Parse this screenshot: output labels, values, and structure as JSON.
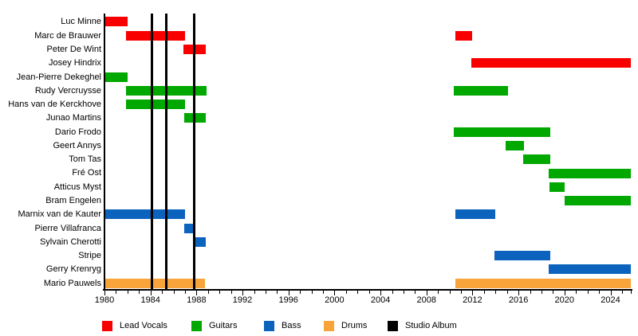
{
  "chart_data": {
    "type": "gantt",
    "description": "Band member timeline with studio album markers",
    "x_axis": {
      "min": 1980,
      "max": 2025.8,
      "label_step": 4,
      "minor_step": 1,
      "tick_labels": [
        "1980",
        "1984",
        "1988",
        "1992",
        "1996",
        "2000",
        "2004",
        "2008",
        "2012",
        "2016",
        "2020",
        "2024"
      ]
    },
    "colors": {
      "lead_vocals": "#f80000",
      "guitars": "#00a800",
      "bass": "#0b63be",
      "drums": "#f9a43b",
      "studio_album": "#000000"
    },
    "legend": [
      {
        "key": "lead_vocals",
        "label": "Lead Vocals"
      },
      {
        "key": "guitars",
        "label": "Guitars"
      },
      {
        "key": "bass",
        "label": "Bass"
      },
      {
        "key": "drums",
        "label": "Drums"
      },
      {
        "key": "studio_album",
        "label": "Studio Album"
      }
    ],
    "studio_albums": [
      1984.15,
      1985.35,
      1987.8
    ],
    "members": [
      {
        "name": "Luc Minne",
        "role": "lead_vocals",
        "spans": [
          [
            1980,
            1982
          ]
        ]
      },
      {
        "name": "Marc de Brauwer",
        "role": "lead_vocals",
        "spans": [
          [
            1981.85,
            1987
          ],
          [
            2010.5,
            2012
          ]
        ]
      },
      {
        "name": "Peter De Wint",
        "role": "lead_vocals",
        "spans": [
          [
            1986.85,
            1988.8
          ]
        ]
      },
      {
        "name": "Josey Hindrix",
        "role": "lead_vocals",
        "spans": [
          [
            2011.9,
            2025.8
          ]
        ]
      },
      {
        "name": "Jean-Pierre Dekeghel",
        "role": "guitars",
        "spans": [
          [
            1980,
            1982
          ]
        ]
      },
      {
        "name": "Rudy Vercruysse",
        "role": "guitars",
        "spans": [
          [
            1981.85,
            1988.9
          ],
          [
            2010.4,
            2015.1
          ]
        ]
      },
      {
        "name": "Hans van de Kerckhove",
        "role": "guitars",
        "spans": [
          [
            1981.85,
            1987
          ]
        ]
      },
      {
        "name": "Junao Martins",
        "role": "guitars",
        "spans": [
          [
            1986.9,
            1988.8
          ]
        ]
      },
      {
        "name": "Dario Frodo",
        "role": "guitars",
        "spans": [
          [
            2010.4,
            2018.8
          ]
        ]
      },
      {
        "name": "Geert Annys",
        "role": "guitars",
        "spans": [
          [
            2014.9,
            2016.5
          ]
        ]
      },
      {
        "name": "Tom Tas",
        "role": "guitars",
        "spans": [
          [
            2016.4,
            2018.8
          ]
        ]
      },
      {
        "name": "Fré Ost",
        "role": "guitars",
        "spans": [
          [
            2018.6,
            2025.8
          ]
        ]
      },
      {
        "name": "Atticus Myst",
        "role": "guitars",
        "spans": [
          [
            2018.7,
            2020
          ]
        ]
      },
      {
        "name": "Bram Engelen",
        "role": "guitars",
        "spans": [
          [
            2020,
            2025.8
          ]
        ]
      },
      {
        "name": "Marnix van de Kauter",
        "role": "bass",
        "spans": [
          [
            1980,
            1987
          ],
          [
            2010.5,
            2014
          ]
        ]
      },
      {
        "name": "Pierre Villafranca",
        "role": "bass",
        "spans": [
          [
            1986.9,
            1987.9
          ]
        ]
      },
      {
        "name": "Sylvain Cherotti",
        "role": "bass",
        "spans": [
          [
            1987.8,
            1988.8
          ]
        ]
      },
      {
        "name": "Stripe",
        "role": "bass",
        "spans": [
          [
            2013.9,
            2018.8
          ]
        ]
      },
      {
        "name": "Gerry Krenryg",
        "role": "bass",
        "spans": [
          [
            2018.6,
            2025.8
          ]
        ]
      },
      {
        "name": "Mario Pauwels",
        "role": "drums",
        "spans": [
          [
            1980,
            1988.7
          ],
          [
            2010.5,
            2025.8
          ]
        ]
      }
    ]
  }
}
